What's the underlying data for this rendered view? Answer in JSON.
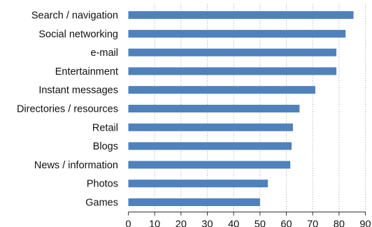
{
  "chart_data": {
    "type": "bar",
    "orientation": "horizontal",
    "categories": [
      "Search / navigation",
      "Social networking",
      "e-mail",
      "Entertainment",
      "Instant messages",
      "Directories / resources",
      "Retail",
      "Blogs",
      "News / information",
      "Photos",
      "Games"
    ],
    "values": [
      85.5,
      82.5,
      79,
      79,
      71,
      65,
      62.5,
      62,
      61.5,
      53,
      50
    ],
    "xlim": [
      0,
      90
    ],
    "xticks": [
      "0",
      "10",
      "20",
      "30",
      "40",
      "50",
      "60",
      "70",
      "80",
      "90"
    ],
    "title": "",
    "xlabel": "",
    "ylabel": "",
    "grid": "vertical dotted",
    "legend": "none",
    "bar_color": "#4f81bd"
  }
}
